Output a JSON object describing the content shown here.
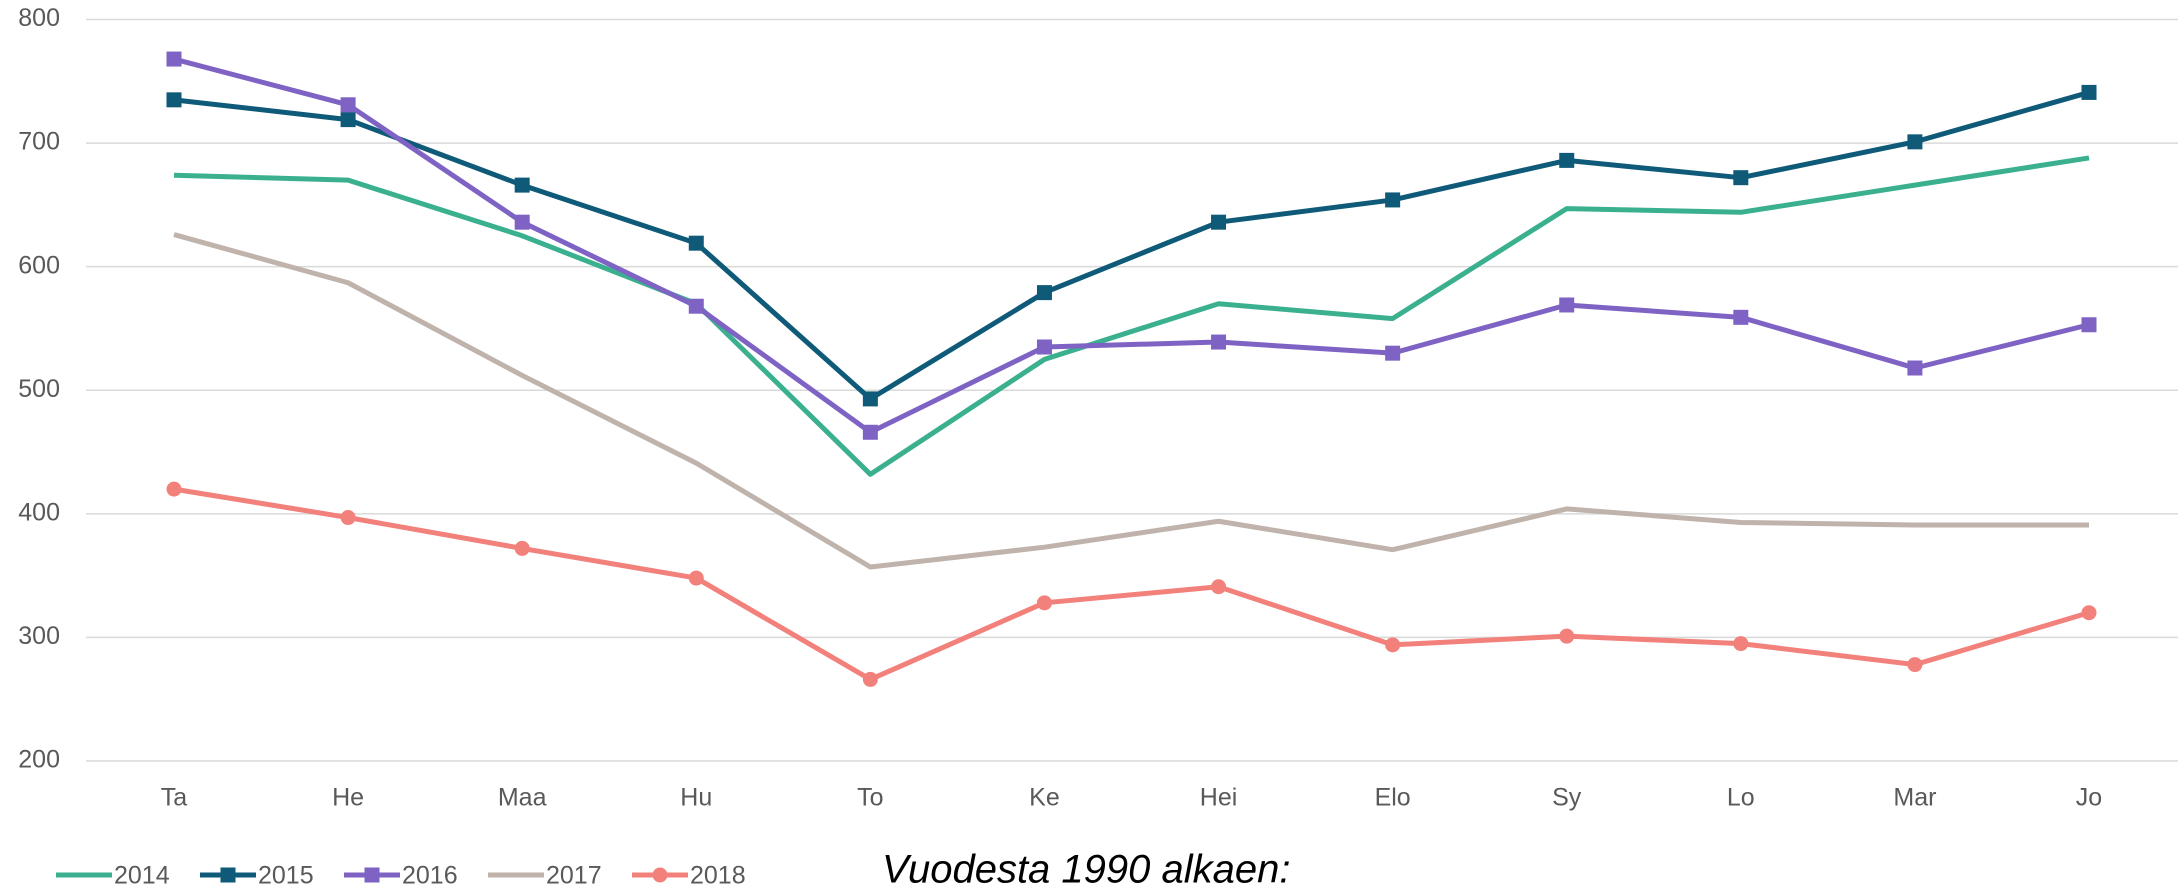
{
  "chart_data": {
    "type": "line",
    "categories": [
      "Ta",
      "He",
      "Maa",
      "Hu",
      "To",
      "Ke",
      "Hei",
      "Elo",
      "Sy",
      "Lo",
      "Mar",
      "Jo"
    ],
    "series": [
      {
        "name": "2014",
        "color": "#3bb08f",
        "marker": "none",
        "values": [
          674,
          670,
          625,
          570,
          432,
          525,
          570,
          558,
          647,
          644,
          666,
          688
        ]
      },
      {
        "name": "2015",
        "color": "#0e5a78",
        "marker": "square",
        "values": [
          735,
          719,
          666,
          619,
          493,
          579,
          636,
          654,
          686,
          672,
          701,
          741
        ]
      },
      {
        "name": "2016",
        "color": "#7e63c4",
        "marker": "square",
        "values": [
          768,
          731,
          636,
          568,
          466,
          535,
          539,
          530,
          569,
          559,
          518,
          553
        ]
      },
      {
        "name": "2017",
        "color": "#bfb3ab",
        "marker": "none",
        "values": [
          626,
          587,
          512,
          441,
          357,
          373,
          394,
          371,
          404,
          393,
          391,
          391
        ]
      },
      {
        "name": "2018",
        "color": "#f2807b",
        "marker": "circle",
        "values": [
          420,
          397,
          372,
          348,
          266,
          328,
          341,
          294,
          301,
          295,
          278,
          320
        ]
      }
    ],
    "ylim": [
      200,
      800
    ],
    "yticks": [
      200,
      300,
      400,
      500,
      600,
      700,
      800
    ],
    "grid": true,
    "legend": "bottom-left",
    "annotation": "Vuodesta 1990 alkaen:"
  }
}
